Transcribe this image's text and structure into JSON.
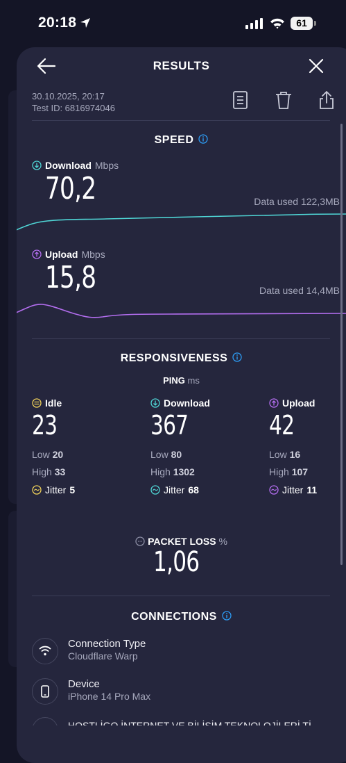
{
  "status_bar": {
    "time": "20:18",
    "battery": "61"
  },
  "header": {
    "title": "RESULTS"
  },
  "meta": {
    "date": "30.10.2025, 20:17",
    "test_id": "Test ID: 6816974046"
  },
  "speed": {
    "title": "SPEED",
    "download": {
      "label": "Download",
      "unit": "Mbps",
      "value": "70,2",
      "data_used": "Data used 122,3MB"
    },
    "upload": {
      "label": "Upload",
      "unit": "Mbps",
      "value": "15,8",
      "data_used": "Data used 14,4MB"
    }
  },
  "responsiveness": {
    "title": "RESPONSIVENESS",
    "ping_label": "PING",
    "ping_unit": "ms",
    "columns": [
      {
        "label": "Idle",
        "value": "23",
        "low_label": "Low",
        "low": "20",
        "high_label": "High",
        "high": "33",
        "jitter_label": "Jitter",
        "jitter": "5"
      },
      {
        "label": "Download",
        "value": "367",
        "low_label": "Low",
        "low": "80",
        "high_label": "High",
        "high": "1302",
        "jitter_label": "Jitter",
        "jitter": "68"
      },
      {
        "label": "Upload",
        "value": "42",
        "low_label": "Low",
        "low": "16",
        "high_label": "High",
        "high": "107",
        "jitter_label": "Jitter",
        "jitter": "11"
      }
    ]
  },
  "packet_loss": {
    "label": "PACKET LOSS",
    "unit": "%",
    "value": "1,06"
  },
  "connections": {
    "title": "CONNECTIONS",
    "items": [
      {
        "title": "Connection Type",
        "subtitle": "Cloudflare Warp"
      },
      {
        "title": "Device",
        "subtitle": "iPhone 14 Pro Max"
      },
      {
        "title": "HOSTLİGO İNTERNET VE BİLİŞİM TEKNOLOJİLERİ Tİ",
        "subtitle": ""
      }
    ]
  },
  "colors": {
    "download": "#4fd5d5",
    "upload": "#b46ef0",
    "idle": "#f2d35a",
    "accent": "#2d9cf5"
  },
  "icons": [
    "location-arrow-icon",
    "signal-icon",
    "wifi-icon",
    "battery-icon",
    "back-arrow-icon",
    "close-icon",
    "document-icon",
    "trash-icon",
    "share-icon",
    "info-icon",
    "download-arrow-icon",
    "upload-arrow-icon",
    "idle-icon",
    "jitter-icon",
    "packet-loss-icon",
    "wifi-connection-icon",
    "phone-icon",
    "server-icon"
  ]
}
